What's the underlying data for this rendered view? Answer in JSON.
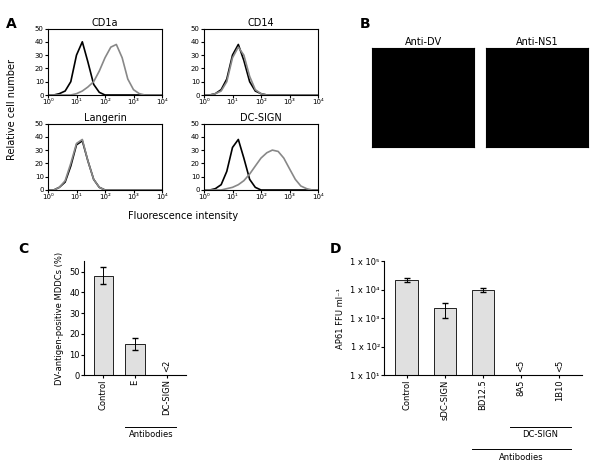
{
  "chart_data": [
    {
      "type": "line",
      "panel": "A",
      "ylabel": "Relative cell number",
      "xlabel": "Fluorescence intensity",
      "log": "x",
      "xlim": [
        1,
        10000
      ],
      "xticks": [
        {
          "value": 1,
          "label": "10⁰"
        },
        {
          "value": 10,
          "label": "10¹"
        },
        {
          "value": 100,
          "label": "10²"
        },
        {
          "value": 1000,
          "label": "10³"
        },
        {
          "value": 10000,
          "label": "10⁴"
        }
      ],
      "ylim": [
        0,
        50
      ],
      "yticks": [
        0,
        10,
        20,
        30,
        40,
        50
      ],
      "x": [
        1,
        1.6,
        2.5,
        4,
        6.3,
        10,
        16,
        25,
        40,
        63,
        100,
        160,
        250,
        400,
        630,
        1000,
        1600,
        2500,
        4000,
        6300,
        10000
      ],
      "charts": [
        {
          "title": "CD1a",
          "series": [
            {
              "color": "#000000",
              "values": [
                0,
                0,
                1,
                3,
                10,
                30,
                40,
                25,
                8,
                2,
                0,
                0,
                0,
                0,
                0,
                0,
                0,
                0,
                0,
                0,
                0
              ]
            },
            {
              "color": "#888888",
              "values": [
                0,
                0,
                0,
                0,
                0,
                1,
                3,
                6,
                10,
                18,
                28,
                36,
                38,
                28,
                12,
                4,
                1,
                0,
                0,
                0,
                0
              ]
            }
          ]
        },
        {
          "title": "CD14",
          "series": [
            {
              "color": "#000000",
              "values": [
                0,
                0,
                1,
                4,
                12,
                30,
                38,
                26,
                10,
                3,
                1,
                0,
                0,
                0,
                0,
                0,
                0,
                0,
                0,
                0,
                0
              ]
            },
            {
              "color": "#888888",
              "values": [
                0,
                0,
                1,
                3,
                10,
                28,
                36,
                30,
                14,
                4,
                1,
                0,
                0,
                0,
                0,
                0,
                0,
                0,
                0,
                0,
                0
              ]
            }
          ]
        },
        {
          "title": "Langerin",
          "series": [
            {
              "color": "#000000",
              "values": [
                0,
                0,
                2,
                6,
                18,
                34,
                37,
                22,
                8,
                2,
                0,
                0,
                0,
                0,
                0,
                0,
                0,
                0,
                0,
                0,
                0
              ]
            },
            {
              "color": "#888888",
              "values": [
                0,
                0,
                2,
                7,
                20,
                35,
                38,
                22,
                8,
                2,
                0,
                0,
                0,
                0,
                0,
                0,
                0,
                0,
                0,
                0,
                0
              ]
            }
          ]
        },
        {
          "title": "DC-SIGN",
          "series": [
            {
              "color": "#000000",
              "values": [
                0,
                0,
                1,
                4,
                14,
                32,
                38,
                24,
                8,
                2,
                0,
                0,
                0,
                0,
                0,
                0,
                0,
                0,
                0,
                0,
                0
              ]
            },
            {
              "color": "#888888",
              "values": [
                0,
                0,
                0,
                0,
                1,
                2,
                4,
                7,
                12,
                18,
                24,
                28,
                30,
                29,
                24,
                16,
                8,
                3,
                1,
                0,
                0
              ]
            }
          ]
        }
      ]
    },
    {
      "type": "image",
      "panel": "B",
      "color": "#000000",
      "images": [
        {
          "title": "Anti-DV"
        },
        {
          "title": "Anti-NS1"
        }
      ]
    },
    {
      "type": "bar",
      "panel": "C",
      "ylabel": "DV-antigen-positive MDDCs (%)",
      "categories": [
        "Control",
        "E",
        "DC-SIGN"
      ],
      "values": [
        48,
        15,
        null
      ],
      "errors": [
        4,
        3,
        null
      ],
      "color": "#e0e0e0",
      "ylim": [
        0,
        55
      ],
      "yticks": [
        0,
        10,
        20,
        30,
        40,
        50
      ],
      "annotations": [
        {
          "category": "DC-SIGN",
          "text": "<2"
        }
      ],
      "groups": [
        {
          "label": "Antibodies",
          "categories": [
            "E",
            "DC-SIGN"
          ]
        }
      ]
    },
    {
      "type": "bar",
      "panel": "D",
      "ylabel": "AP61 FFU ml⁻¹",
      "log": "y",
      "categories": [
        "Control",
        "sDC-SIGN",
        "BD12.5",
        "8A5",
        "1B10"
      ],
      "values": [
        22000,
        2200,
        10000,
        null,
        null
      ],
      "errors": [
        3000,
        1200,
        1500,
        null,
        null
      ],
      "color": "#e0e0e0",
      "ylim": [
        10,
        100000
      ],
      "yticks": [
        {
          "value": 10,
          "label": "1 x 10¹"
        },
        {
          "value": 100,
          "label": "1 x 10²"
        },
        {
          "value": 1000,
          "label": "1 x 10³"
        },
        {
          "value": 10000,
          "label": "1 x 10⁴"
        },
        {
          "value": 100000,
          "label": "1 x 10⁵"
        }
      ],
      "annotations": [
        {
          "category": "8A5",
          "text": "<5"
        },
        {
          "category": "1B10",
          "text": "<5"
        }
      ],
      "groups": [
        {
          "label": "DC-SIGN",
          "categories": [
            "8A5",
            "1B10"
          ]
        },
        {
          "label": "Antibodies",
          "categories": [
            "BD12.5",
            "8A5",
            "1B10"
          ]
        }
      ]
    }
  ]
}
